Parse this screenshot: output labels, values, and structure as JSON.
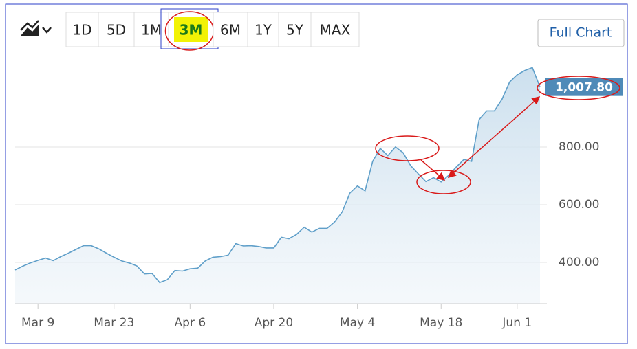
{
  "toolbar": {
    "ranges": [
      "1D",
      "5D",
      "1M",
      "3M",
      "6M",
      "1Y",
      "5Y",
      "MAX"
    ],
    "active_range": 3,
    "full_chart": "Full Chart"
  },
  "chart_data": {
    "type": "area",
    "categories": [
      null,
      null,
      null,
      "Mar 9",
      null,
      null,
      null,
      null,
      null,
      null,
      null,
      null,
      null,
      "Mar 23",
      null,
      null,
      null,
      null,
      null,
      null,
      null,
      null,
      null,
      "Apr 6",
      null,
      null,
      null,
      null,
      null,
      null,
      null,
      null,
      null,
      null,
      "Apr 20",
      null,
      null,
      null,
      null,
      null,
      null,
      null,
      null,
      null,
      null,
      "May 4",
      null,
      null,
      null,
      null,
      null,
      null,
      null,
      null,
      null,
      null,
      "May 18",
      null,
      null,
      null,
      null,
      null,
      null,
      null,
      null,
      null,
      "Jun 1",
      null,
      null,
      null
    ],
    "series": [
      {
        "color": "#5f9fc9",
        "values": [
          374,
          387,
          398,
          407,
          415,
          406,
          420,
          432,
          445,
          458,
          458,
          447,
          432,
          418,
          405,
          398,
          388,
          360,
          362,
          330,
          340,
          372,
          370,
          378,
          380,
          405,
          418,
          420,
          425,
          465,
          457,
          458,
          455,
          450,
          450,
          487,
          482,
          497,
          522,
          505,
          518,
          518,
          540,
          575,
          640,
          665,
          648,
          750,
          795,
          770,
          800,
          780,
          735,
          707,
          680,
          694,
          679,
          702,
          731,
          757,
          750,
          895,
          925,
          925,
          965,
          1025,
          1050,
          1065,
          1075,
          1007.8
        ]
      }
    ],
    "last_value_label": "1,007.80",
    "ylim": [
      257,
      1107
    ],
    "yticks": [
      {
        "value": 400,
        "label": "400.00"
      },
      {
        "value": 600,
        "label": "600.00"
      },
      {
        "value": 800,
        "label": "800.00"
      }
    ],
    "grid": true
  }
}
